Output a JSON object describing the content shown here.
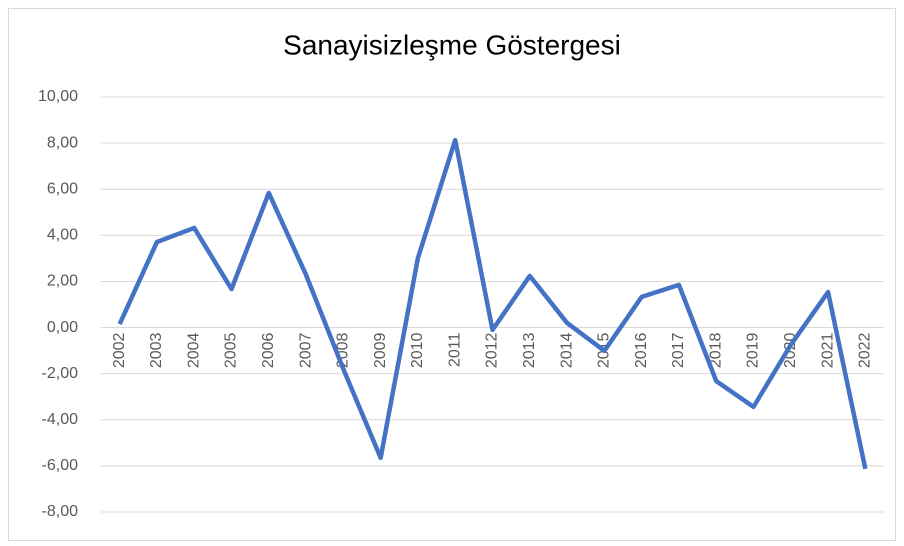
{
  "chart_data": {
    "type": "line",
    "title": "Sanayisizleşme Göstergesi",
    "categories": [
      "2002",
      "2003",
      "2004",
      "2005",
      "2006",
      "2007",
      "2008",
      "2009",
      "2010",
      "2011",
      "2012",
      "2013",
      "2014",
      "2015",
      "2016",
      "2017",
      "2018",
      "2019",
      "2020",
      "2021",
      "2022"
    ],
    "series": [
      {
        "name": "Sanayisizleşme Göstergesi",
        "color": "#4472c4",
        "values": [
          0.15,
          3.71,
          4.32,
          1.67,
          5.84,
          2.28,
          -1.8,
          -5.65,
          3.02,
          8.13,
          -0.1,
          2.24,
          0.2,
          -1.01,
          1.33,
          1.85,
          -2.32,
          -3.44,
          -0.75,
          1.54,
          -6.13
        ]
      }
    ],
    "ylim": [
      -8,
      10
    ],
    "yticks": [
      {
        "value": -8,
        "label": "-8,00"
      },
      {
        "value": -6,
        "label": "-6,00"
      },
      {
        "value": -4,
        "label": "-4,00"
      },
      {
        "value": -2,
        "label": "-2,00"
      },
      {
        "value": 0,
        "label": "0,00"
      },
      {
        "value": 2,
        "label": "2,00"
      },
      {
        "value": 4,
        "label": "4,00"
      },
      {
        "value": 6,
        "label": "6,00"
      },
      {
        "value": 8,
        "label": "8,00"
      },
      {
        "value": 10,
        "label": "10,00"
      }
    ],
    "grid": true
  }
}
